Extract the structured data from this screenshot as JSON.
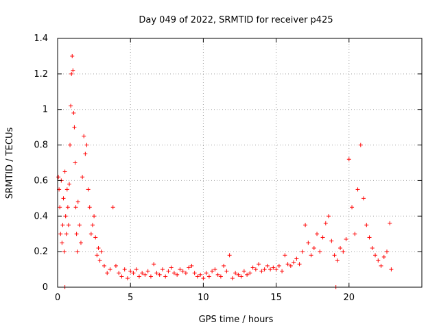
{
  "chart_data": {
    "type": "scatter",
    "title": "Day 049 of 2022, SRMTID for receiver p425",
    "xlabel": "GPS time / hours",
    "ylabel": "SRMTID / TECUs",
    "xlim": [
      0,
      25
    ],
    "ylim": [
      0,
      1.4
    ],
    "grid": true,
    "marker": "+",
    "color": "#ff0000",
    "xticks": [
      {
        "value": 0,
        "label": "0"
      },
      {
        "value": 5,
        "label": "5"
      },
      {
        "value": 10,
        "label": "10"
      },
      {
        "value": 15,
        "label": "15"
      },
      {
        "value": 20,
        "label": "20"
      }
    ],
    "yticks": [
      {
        "value": 0,
        "label": "0"
      },
      {
        "value": 0.2,
        "label": "0.2"
      },
      {
        "value": 0.4,
        "label": "0.4"
      },
      {
        "value": 0.6,
        "label": "0.6"
      },
      {
        "value": 0.8,
        "label": "0.8"
      },
      {
        "value": 1.0,
        "label": "1"
      },
      {
        "value": 1.2,
        "label": "1.2"
      },
      {
        "value": 1.4,
        "label": "1.4"
      }
    ],
    "points": [
      [
        0.05,
        0.62
      ],
      [
        0.1,
        0.55
      ],
      [
        0.15,
        0.45
      ],
      [
        0.2,
        0.3
      ],
      [
        0.25,
        0.6
      ],
      [
        0.3,
        0.25
      ],
      [
        0.35,
        0.35
      ],
      [
        0.4,
        0.5
      ],
      [
        0.45,
        0.2
      ],
      [
        0.5,
        0.65
      ],
      [
        0.55,
        0.4
      ],
      [
        0.6,
        0.3
      ],
      [
        0.65,
        0.55
      ],
      [
        0.7,
        0.45
      ],
      [
        0.75,
        0.35
      ],
      [
        0.8,
        0.58
      ],
      [
        0.85,
        0.8
      ],
      [
        0.9,
        1.02
      ],
      [
        0.95,
        1.2
      ],
      [
        1.0,
        1.3
      ],
      [
        1.05,
        1.22
      ],
      [
        1.1,
        0.98
      ],
      [
        1.15,
        0.9
      ],
      [
        1.2,
        0.7
      ],
      [
        1.25,
        0.45
      ],
      [
        1.3,
        0.3
      ],
      [
        1.35,
        0.2
      ],
      [
        1.4,
        0.48
      ],
      [
        1.5,
        0.35
      ],
      [
        1.6,
        0.25
      ],
      [
        1.7,
        0.62
      ],
      [
        1.8,
        0.85
      ],
      [
        1.9,
        0.75
      ],
      [
        2.0,
        0.8
      ],
      [
        2.1,
        0.55
      ],
      [
        2.2,
        0.45
      ],
      [
        2.3,
        0.3
      ],
      [
        2.4,
        0.35
      ],
      [
        2.5,
        0.4
      ],
      [
        2.6,
        0.28
      ],
      [
        2.7,
        0.18
      ],
      [
        2.8,
        0.22
      ],
      [
        2.9,
        0.15
      ],
      [
        3.0,
        0.2
      ],
      [
        3.2,
        0.12
      ],
      [
        3.4,
        0.08
      ],
      [
        3.6,
        0.1
      ],
      [
        3.8,
        0.45
      ],
      [
        4.0,
        0.12
      ],
      [
        4.2,
        0.08
      ],
      [
        4.4,
        0.06
      ],
      [
        4.6,
        0.1
      ],
      [
        4.8,
        0.05
      ],
      [
        5.0,
        0.09
      ],
      [
        5.2,
        0.08
      ],
      [
        5.4,
        0.1
      ],
      [
        5.6,
        0.06
      ],
      [
        5.8,
        0.08
      ],
      [
        6.0,
        0.07
      ],
      [
        6.2,
        0.09
      ],
      [
        6.4,
        0.06
      ],
      [
        6.6,
        0.13
      ],
      [
        6.8,
        0.08
      ],
      [
        7.0,
        0.07
      ],
      [
        7.2,
        0.1
      ],
      [
        7.4,
        0.06
      ],
      [
        7.6,
        0.09
      ],
      [
        7.8,
        0.11
      ],
      [
        8.0,
        0.08
      ],
      [
        8.2,
        0.07
      ],
      [
        8.4,
        0.1
      ],
      [
        8.6,
        0.09
      ],
      [
        8.8,
        0.08
      ],
      [
        9.0,
        0.11
      ],
      [
        9.2,
        0.12
      ],
      [
        9.4,
        0.08
      ],
      [
        9.6,
        0.06
      ],
      [
        9.8,
        0.07
      ],
      [
        10.0,
        0.05
      ],
      [
        10.2,
        0.08
      ],
      [
        10.4,
        0.06
      ],
      [
        10.6,
        0.09
      ],
      [
        10.8,
        0.1
      ],
      [
        11.0,
        0.07
      ],
      [
        11.2,
        0.06
      ],
      [
        11.4,
        0.12
      ],
      [
        11.6,
        0.09
      ],
      [
        11.8,
        0.18
      ],
      [
        12.0,
        0.05
      ],
      [
        12.2,
        0.08
      ],
      [
        12.4,
        0.07
      ],
      [
        12.6,
        0.06
      ],
      [
        12.8,
        0.09
      ],
      [
        13.0,
        0.07
      ],
      [
        13.2,
        0.08
      ],
      [
        13.4,
        0.11
      ],
      [
        13.6,
        0.1
      ],
      [
        13.8,
        0.13
      ],
      [
        14.0,
        0.09
      ],
      [
        14.2,
        0.1
      ],
      [
        14.4,
        0.12
      ],
      [
        14.6,
        0.1
      ],
      [
        14.8,
        0.11
      ],
      [
        15.0,
        0.1
      ],
      [
        15.2,
        0.12
      ],
      [
        15.4,
        0.09
      ],
      [
        15.6,
        0.18
      ],
      [
        15.8,
        0.13
      ],
      [
        16.0,
        0.12
      ],
      [
        16.2,
        0.14
      ],
      [
        16.4,
        0.16
      ],
      [
        16.6,
        0.13
      ],
      [
        16.8,
        0.2
      ],
      [
        17.0,
        0.35
      ],
      [
        17.2,
        0.25
      ],
      [
        17.4,
        0.18
      ],
      [
        17.6,
        0.22
      ],
      [
        17.8,
        0.3
      ],
      [
        18.0,
        0.2
      ],
      [
        18.2,
        0.28
      ],
      [
        18.4,
        0.36
      ],
      [
        18.6,
        0.4
      ],
      [
        18.8,
        0.26
      ],
      [
        19.0,
        0.18
      ],
      [
        19.2,
        0.15
      ],
      [
        19.4,
        0.22
      ],
      [
        19.6,
        0.2
      ],
      [
        19.8,
        0.27
      ],
      [
        20.0,
        0.72
      ],
      [
        20.2,
        0.45
      ],
      [
        20.4,
        0.3
      ],
      [
        20.6,
        0.55
      ],
      [
        20.8,
        0.8
      ],
      [
        21.0,
        0.5
      ],
      [
        21.2,
        0.35
      ],
      [
        21.4,
        0.28
      ],
      [
        21.6,
        0.22
      ],
      [
        21.8,
        0.18
      ],
      [
        22.0,
        0.15
      ],
      [
        22.2,
        0.12
      ],
      [
        22.4,
        0.17
      ],
      [
        22.6,
        0.2
      ],
      [
        22.8,
        0.36
      ],
      [
        22.9,
        0.1
      ]
    ],
    "baseline_points": [
      [
        0.5,
        0.0
      ],
      [
        19.1,
        0.0
      ]
    ]
  }
}
